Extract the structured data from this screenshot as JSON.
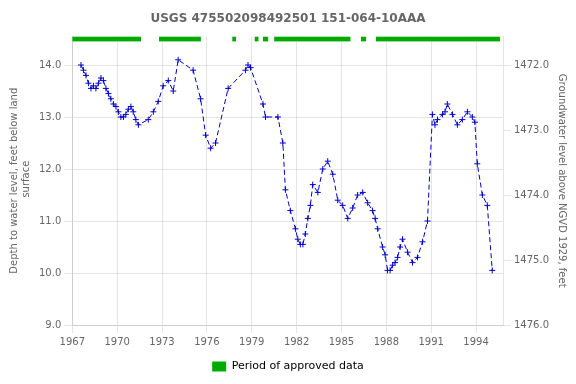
{
  "chart_data": {
    "type": "line",
    "title": "USGS 475502098492501 151-064-10AAA",
    "ylabel": "Depth to water level, feet below land\n surface",
    "y2label": "Groundwater level above NGVD 1929, feet",
    "xlim": [
      1967.0,
      1995.8
    ],
    "xticks": [
      1967,
      1970,
      1973,
      1976,
      1979,
      1982,
      1985,
      1988,
      1991,
      1994
    ],
    "ylim": [
      9.0,
      14.55
    ],
    "yticks": [
      {
        "value": 9.0,
        "label": "9.0"
      },
      {
        "value": 10.0,
        "label": "10.0"
      },
      {
        "value": 11.0,
        "label": "11.0"
      },
      {
        "value": 12.0,
        "label": "12.0"
      },
      {
        "value": 13.0,
        "label": "13.0"
      },
      {
        "value": 14.0,
        "label": "14.0"
      }
    ],
    "y2lim": [
      1476.0,
      1471.56
    ],
    "y2ticks": [
      {
        "value": 1476.0,
        "label": "1476.0"
      },
      {
        "value": 1475.0,
        "label": "1475.0"
      },
      {
        "value": 1474.0,
        "label": "1474.0"
      },
      {
        "value": 1473.0,
        "label": "1473.0"
      },
      {
        "value": 1472.0,
        "label": "1472.0"
      }
    ],
    "grid": true,
    "legend": "bottom",
    "color": "#0000cc",
    "marker": "+",
    "line_style": "dashed",
    "x": [
      1967.58,
      1967.75,
      1967.92,
      1968.08,
      1968.25,
      1968.42,
      1968.58,
      1968.75,
      1968.92,
      1969.08,
      1969.25,
      1969.42,
      1969.58,
      1969.75,
      1969.92,
      1970.08,
      1970.25,
      1970.42,
      1970.58,
      1970.75,
      1970.92,
      1971.08,
      1971.25,
      1971.42,
      1972.08,
      1972.42,
      1972.75,
      1973.08,
      1973.42,
      1973.75,
      1974.08,
      1975.08,
      1975.58,
      1975.92,
      1976.25,
      1976.58,
      1977.42,
      1978.58,
      1978.75,
      1978.92,
      1979.75,
      1979.92,
      1980.75,
      1981.08,
      1981.25,
      1981.58,
      1981.92,
      1982.08,
      1982.25,
      1982.42,
      1982.58,
      1982.75,
      1982.92,
      1983.08,
      1983.42,
      1983.75,
      1984.08,
      1984.42,
      1984.75,
      1985.08,
      1985.42,
      1985.75,
      1986.08,
      1986.42,
      1986.75,
      1987.08,
      1987.25,
      1987.42,
      1987.75,
      1987.92,
      1988.08,
      1988.25,
      1988.42,
      1988.58,
      1988.75,
      1988.92,
      1989.08,
      1989.42,
      1989.75,
      1990.08,
      1990.42,
      1990.75,
      1991.08,
      1991.25,
      1991.42,
      1991.75,
      1991.92,
      1992.08,
      1992.42,
      1992.75,
      1993.08,
      1993.42,
      1993.75,
      1993.92,
      1994.08,
      1994.42,
      1994.75,
      1995.08
    ],
    "values": [
      14.0,
      13.9,
      13.8,
      13.65,
      13.55,
      13.6,
      13.55,
      13.65,
      13.75,
      13.7,
      13.55,
      13.45,
      13.35,
      13.25,
      13.2,
      13.1,
      13.0,
      13.0,
      13.05,
      13.15,
      13.2,
      13.1,
      12.95,
      12.85,
      12.95,
      13.1,
      13.3,
      13.6,
      13.7,
      13.5,
      14.1,
      13.9,
      13.35,
      12.65,
      12.4,
      12.5,
      13.55,
      13.9,
      14.0,
      13.95,
      13.25,
      13.0,
      13.0,
      12.5,
      11.6,
      11.2,
      10.85,
      10.65,
      10.55,
      10.55,
      10.75,
      11.05,
      11.3,
      11.7,
      11.55,
      12.0,
      12.15,
      11.9,
      11.4,
      11.3,
      11.05,
      11.25,
      11.5,
      11.55,
      11.35,
      11.2,
      11.05,
      10.85,
      10.5,
      10.35,
      10.05,
      10.05,
      10.15,
      10.2,
      10.3,
      10.5,
      10.65,
      10.4,
      10.2,
      10.3,
      10.6,
      11.0,
      13.05,
      12.85,
      12.95,
      13.05,
      13.1,
      13.25,
      13.05,
      12.85,
      12.95,
      13.1,
      13.0,
      12.9,
      12.1,
      11.5,
      11.3,
      10.05
    ],
    "approved_periods": {
      "name": "Period of approved data",
      "color": "#00aa00",
      "ranges": [
        [
          1967.0,
          1971.6
        ],
        [
          1972.8,
          1975.6
        ],
        [
          1977.7,
          1977.95
        ],
        [
          1979.2,
          1979.45
        ],
        [
          1979.75,
          1980.1
        ],
        [
          1980.5,
          1985.6
        ],
        [
          1986.3,
          1986.65
        ],
        [
          1987.3,
          1995.6
        ]
      ]
    }
  }
}
